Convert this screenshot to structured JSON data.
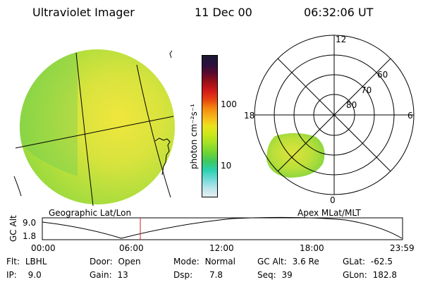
{
  "header": {
    "instrument": "Ultraviolet Imager",
    "date": "11 Dec 00",
    "time": "06:32:06 UT"
  },
  "colorbar": {
    "label": "photon cm⁻²s⁻¹",
    "ticks": [
      "100",
      "10"
    ],
    "colors": [
      "#1a1a33",
      "#2a0e3d",
      "#5b0a2e",
      "#9b0f16",
      "#d11a1a",
      "#e8450f",
      "#f48a10",
      "#f7b71a",
      "#eae31c",
      "#c9e61a",
      "#9fe127",
      "#6fd435",
      "#3fc860",
      "#2bd1b0",
      "#6fd9d8",
      "#b6e6ea",
      "#e6eef0"
    ]
  },
  "geographic": {
    "label": "Geographic Lat/Lon"
  },
  "polar": {
    "label": "Apex MLat/MLT",
    "mlt_labels": {
      "top": "12",
      "left": "18",
      "right": "6",
      "bottom": "0"
    },
    "mlat_labels": [
      "60",
      "70",
      "80"
    ]
  },
  "altitude_plot": {
    "axis_label": "GC Alt",
    "ticks": [
      "9.0",
      "1.8"
    ],
    "time_ticks": [
      "00:00",
      "06:00",
      "12:00",
      "18:00",
      "23:59"
    ],
    "current_time_fraction": 0.272
  },
  "info": {
    "flt": {
      "label": "Flt:",
      "value": "LBHL"
    },
    "ip": {
      "label": "IP:",
      "value": "9.0"
    },
    "door": {
      "label": "Door:",
      "value": "Open"
    },
    "gain": {
      "label": "Gain:",
      "value": "13"
    },
    "mode": {
      "label": "Mode:",
      "value": "Normal"
    },
    "dsp": {
      "label": "Dsp:",
      "value": "7.8"
    },
    "gcalt": {
      "label": "GC Alt:",
      "value": "3.6 Re"
    },
    "seq": {
      "label": "Seq:",
      "value": "39"
    },
    "glat": {
      "label": "GLat:",
      "value": "-62.5"
    },
    "glon": {
      "label": "GLon:",
      "value": "182.8"
    }
  }
}
